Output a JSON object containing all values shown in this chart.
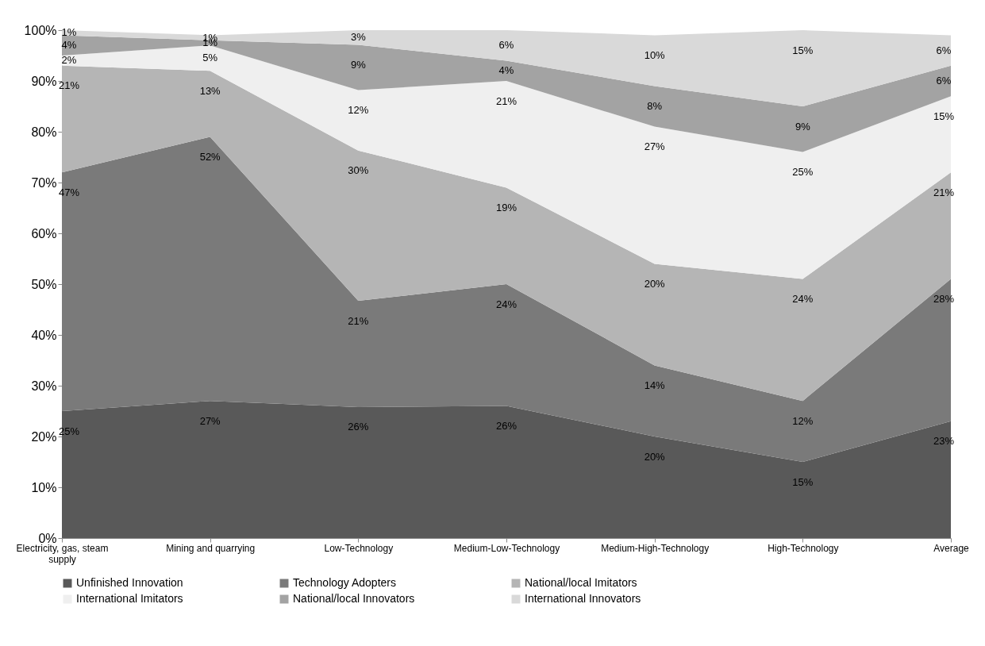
{
  "chart_data": {
    "type": "area",
    "stacked": true,
    "categories": [
      "Electricity, gas, steam supply",
      "Mining and quarrying",
      "Low-Technology",
      "Medium-Low-Technology",
      "Medium-High-Technology",
      "High-Technology",
      "Average"
    ],
    "series": [
      {
        "name": "Unfinished Innovation",
        "color": "#595959",
        "values": [
          25,
          27,
          25.8,
          26,
          20,
          15,
          23
        ],
        "value_labels": [
          "25%",
          "27%",
          "26%",
          "26%",
          "20%",
          "15%",
          "23%"
        ]
      },
      {
        "name": "Technology Adopters",
        "color": "#7a7a7a",
        "values": [
          47,
          52,
          20.9,
          24,
          14,
          12,
          28
        ],
        "value_labels": [
          "47%",
          "52%",
          "21%",
          "24%",
          "14%",
          "12%",
          "28%"
        ]
      },
      {
        "name": "National/local Imitators",
        "color": "#b5b5b5",
        "values": [
          21,
          13,
          29.6,
          19,
          20,
          24,
          21
        ],
        "value_labels": [
          "21%",
          "13%",
          "30%",
          "19%",
          "20%",
          "24%",
          "21%"
        ]
      },
      {
        "name": "International Imitators",
        "color": "#efefef",
        "values": [
          2,
          5,
          11.9,
          21,
          27,
          25,
          15
        ],
        "value_labels": [
          "2%",
          "5%",
          "12%",
          "21%",
          "27%",
          "25%",
          "15%"
        ]
      },
      {
        "name": "National/local Innovators",
        "color": "#a3a3a3",
        "values": [
          4,
          1,
          8.9,
          4,
          8,
          9,
          6
        ],
        "value_labels": [
          "4%",
          "1%",
          "9%",
          "4%",
          "8%",
          "9%",
          "6%"
        ]
      },
      {
        "name": "International Innovators",
        "color": "#d9d9d9",
        "values": [
          1,
          1,
          2.9,
          6,
          10,
          15,
          6
        ],
        "value_labels": [
          "1%",
          "1%",
          "3%",
          "6%",
          "10%",
          "15%",
          "6%"
        ]
      }
    ],
    "ylim": [
      0,
      100
    ],
    "yticks": [
      {
        "value": 0,
        "label": "0%"
      },
      {
        "value": 10,
        "label": "10%"
      },
      {
        "value": 20,
        "label": "20%"
      },
      {
        "value": 30,
        "label": "30%"
      },
      {
        "value": 40,
        "label": "40%"
      },
      {
        "value": 50,
        "label": "50%"
      },
      {
        "value": 60,
        "label": "60%"
      },
      {
        "value": 70,
        "label": "70%"
      },
      {
        "value": 80,
        "label": "80%"
      },
      {
        "value": 90,
        "label": "90%"
      },
      {
        "value": 100,
        "label": "100%"
      }
    ],
    "grid": false,
    "legend": "bottom"
  }
}
